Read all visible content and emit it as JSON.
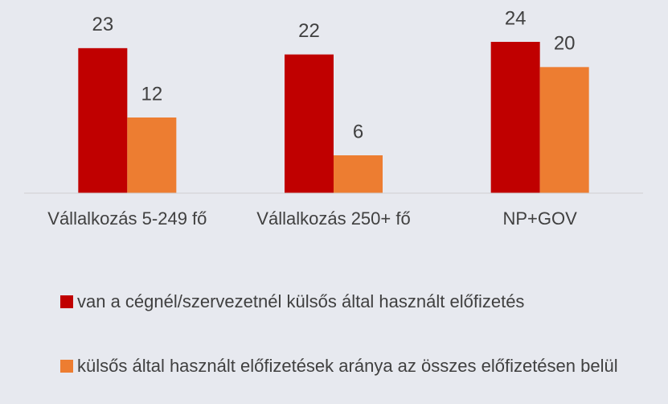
{
  "chart_data": {
    "type": "bar",
    "categories": [
      "Vállalkozás 5-249 fő",
      "Vállalkozás 250+ fő",
      "NP+GOV"
    ],
    "series": [
      {
        "name": "van a cégnél/szervezetnél külsős által használt előfizetés",
        "color": "#c00000",
        "values": [
          23,
          22,
          24
        ]
      },
      {
        "name": "külsős által használt előfizetések aránya az összes előfizetésen belül",
        "color": "#ed7d31",
        "values": [
          12,
          6,
          20
        ]
      }
    ],
    "ylim": [
      0,
      30
    ],
    "legend": "bottom"
  }
}
